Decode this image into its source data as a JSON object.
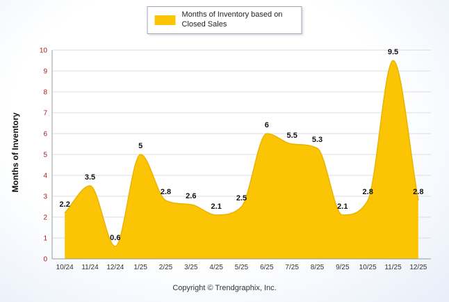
{
  "legend": {
    "label": "Months of Inventory based on Closed Sales",
    "swatch_color": "#FBC505"
  },
  "footer": {
    "copyright": "Copyright © Trendgraphix, Inc."
  },
  "chart_data": {
    "type": "area",
    "title": "",
    "categories": [
      "10/24",
      "11/24",
      "12/24",
      "1/25",
      "2/25",
      "3/25",
      "4/25",
      "5/25",
      "6/25",
      "7/25",
      "8/25",
      "9/25",
      "10/25",
      "11/25",
      "12/25"
    ],
    "values": [
      2.2,
      3.5,
      0.6,
      5,
      2.8,
      2.6,
      2.1,
      2.5,
      6,
      5.5,
      5.3,
      2.1,
      2.8,
      9.5,
      2.8
    ],
    "value_labels": [
      "2.2",
      "3.5",
      "0.6",
      "5",
      "2.8",
      "2.6",
      "2.1",
      "2.5",
      "6",
      "5.5",
      "5.3",
      "2.1",
      "2.8",
      "9.5",
      "2.8"
    ],
    "xlabel": "",
    "ylabel": "Months of Inventory",
    "ylim": [
      0,
      10
    ],
    "ytick_step": 1,
    "grid": "horizontal",
    "legend_position": "top",
    "legend_entries": [
      "Months of Inventory based on Closed Sales"
    ],
    "area_color": "#FBC505",
    "line_color": "#E9B300",
    "ytick_color": "#A61C1C",
    "xtick_color": "#333333",
    "data_label_color": "#111111"
  }
}
